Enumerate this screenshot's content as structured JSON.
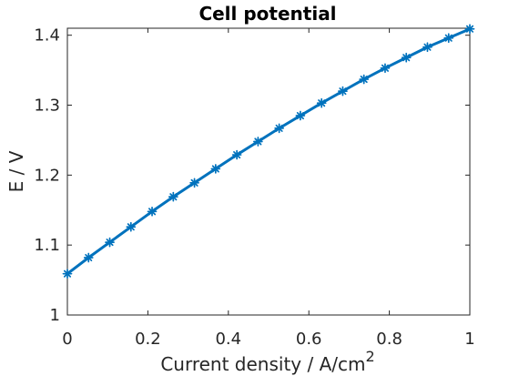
{
  "chart_data": {
    "type": "line",
    "title": "Cell potential",
    "xlabel": "Current density / A/cm",
    "xlabel_superscript": "2",
    "ylabel": "E / V",
    "xlim": [
      0,
      1
    ],
    "ylim": [
      1,
      1.41
    ],
    "x_ticks": [
      0,
      0.2,
      0.4,
      0.6,
      0.8,
      1
    ],
    "x_tick_labels": [
      "0",
      "0.2",
      "0.4",
      "0.6",
      "0.8",
      "1"
    ],
    "y_ticks": [
      1,
      1.1,
      1.2,
      1.3,
      1.4
    ],
    "y_tick_labels": [
      "1",
      "1.1",
      "1.2",
      "1.3",
      "1.4"
    ],
    "grid": false,
    "series": [
      {
        "color": "#0072BD",
        "marker": "asterisk",
        "x": [
          0,
          0.0526,
          0.1053,
          0.1579,
          0.2105,
          0.2632,
          0.3158,
          0.3684,
          0.4211,
          0.4737,
          0.5263,
          0.5789,
          0.6316,
          0.6842,
          0.7368,
          0.7895,
          0.8421,
          0.8947,
          0.9474,
          1
        ],
        "y": [
          1.059,
          1.082,
          1.104,
          1.126,
          1.148,
          1.169,
          1.189,
          1.209,
          1.229,
          1.248,
          1.267,
          1.285,
          1.303,
          1.32,
          1.337,
          1.353,
          1.368,
          1.383,
          1.396,
          1.409
        ]
      }
    ]
  }
}
